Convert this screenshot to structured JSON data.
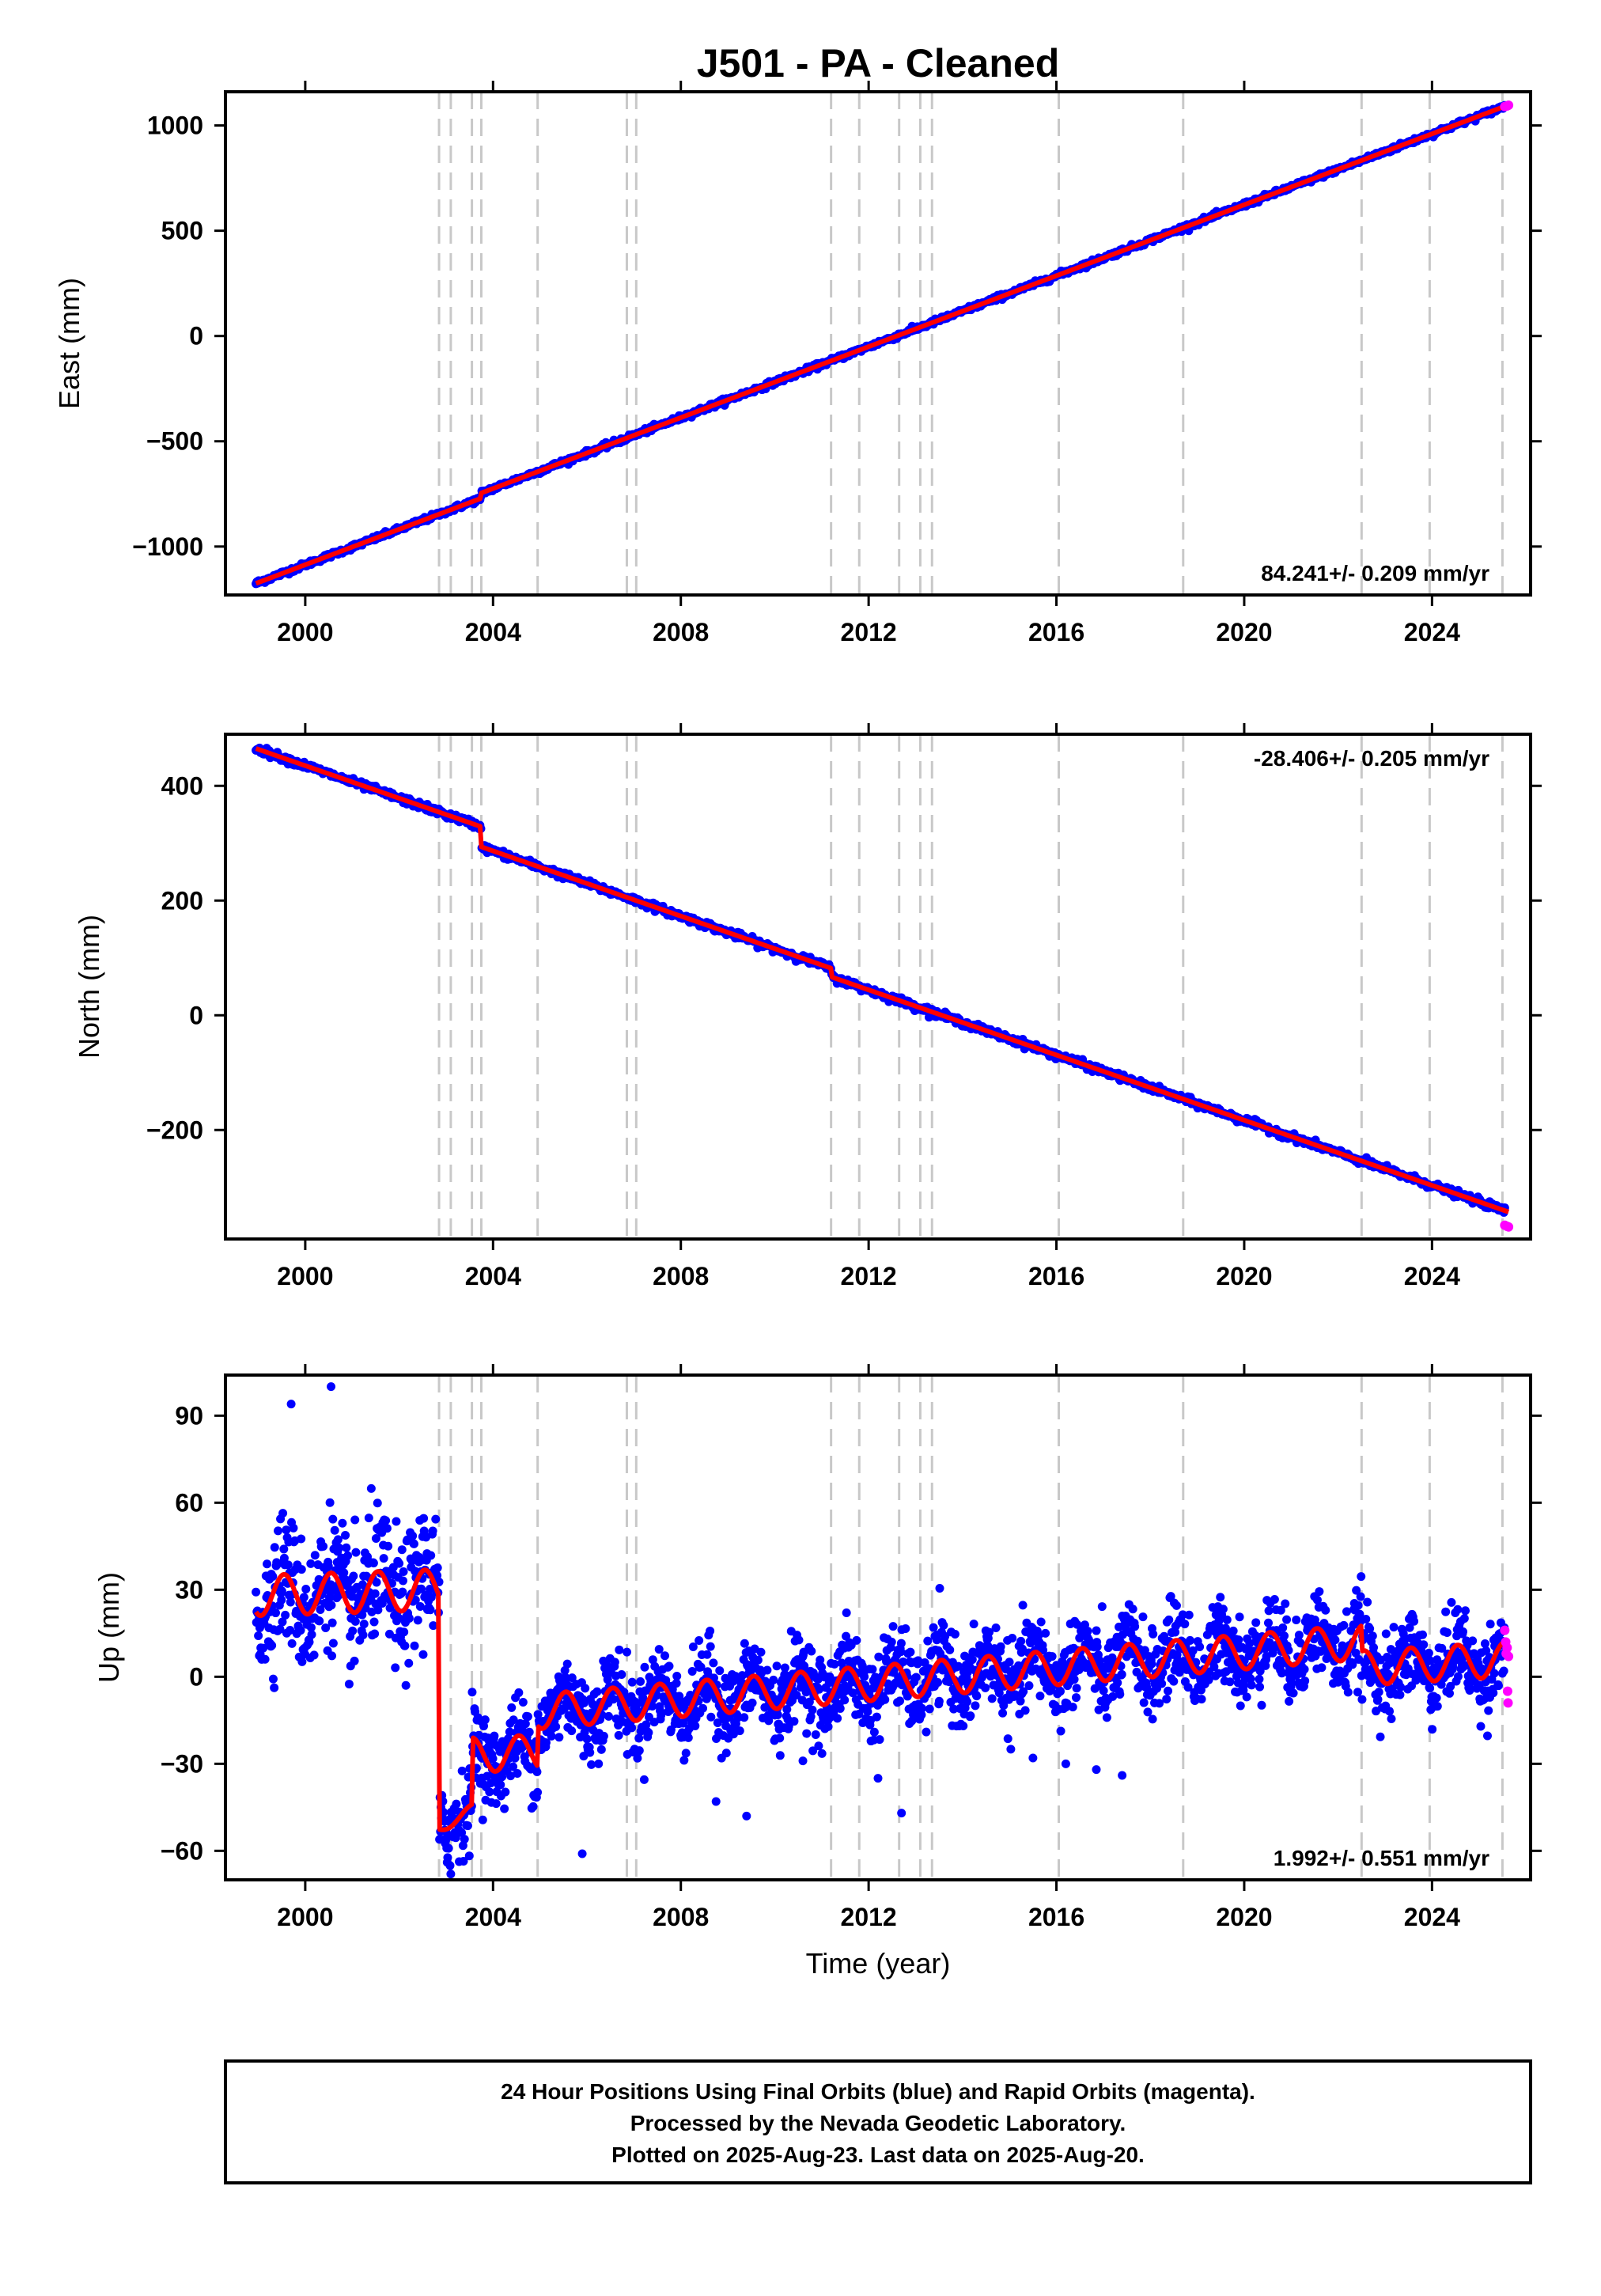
{
  "title": "J501  - PA - Cleaned",
  "footer": {
    "line1": "24 Hour Positions Using Final Orbits (blue) and Rapid Orbits (magenta).",
    "line2": "Processed by the Nevada Geodetic Laboratory.",
    "line3": "Plotted on 2025-Aug-23. Last data on 2025-Aug-20."
  },
  "colors": {
    "final_orbits": "#0000ff",
    "rapid_orbits": "#ff00ff",
    "model": "#ff0000",
    "event_lines": "#c8c8c8",
    "frame": "#000000"
  },
  "chart_data": [
    {
      "type": "scatter",
      "name": "east",
      "ylabel": "East (mm)",
      "xlabel": "",
      "xlim": [
        1998.3,
        2026.1
      ],
      "ylim": [
        -1230,
        1160
      ],
      "xticks": [
        2000,
        2004,
        2008,
        2012,
        2016,
        2020,
        2024
      ],
      "yticks": [
        -1000,
        -500,
        0,
        500,
        1000
      ],
      "yticklabels": [
        "−1000",
        "−500",
        "0",
        "500",
        "1000"
      ],
      "rate_text": "84.241+/- 0.209 mm/yr",
      "rate_position": "bottom-right",
      "event_lines": [
        2002.85,
        2003.1,
        2003.55,
        2003.75,
        2004.95,
        2006.85,
        2007.05,
        2011.2,
        2011.8,
        2012.65,
        2013.1,
        2013.35,
        2016.05,
        2018.7,
        2022.5,
        2023.95,
        2025.5
      ],
      "model": {
        "start": [
          1998.95,
          -1175
        ],
        "trend_mm_per_yr": 84.241,
        "offsets": [
          {
            "epoch": 2003.75,
            "mm": 25
          }
        ],
        "end": [
          2025.63,
          1095
        ]
      },
      "rapid_points": [
        [
          2025.55,
          1090
        ],
        [
          2025.6,
          1093
        ],
        [
          2025.63,
          1096
        ]
      ],
      "final_points_span": [
        1998.95,
        2025.55
      ],
      "noise_mm": 6
    },
    {
      "type": "scatter",
      "name": "north",
      "ylabel": "North (mm)",
      "xlabel": "",
      "xlim": [
        1998.3,
        2026.1
      ],
      "ylim": [
        -390,
        490
      ],
      "xticks": [
        2000,
        2004,
        2008,
        2012,
        2016,
        2020,
        2024
      ],
      "yticks": [
        -200,
        0,
        200,
        400
      ],
      "yticklabels": [
        "−200",
        "0",
        "200",
        "400"
      ],
      "rate_text": "-28.406+/- 0.205 mm/yr",
      "rate_position": "top-right",
      "event_lines": [
        2002.85,
        2003.1,
        2003.55,
        2003.75,
        2004.95,
        2006.85,
        2007.05,
        2011.2,
        2011.8,
        2012.65,
        2013.1,
        2013.35,
        2016.05,
        2018.7,
        2022.5,
        2023.95,
        2025.5
      ],
      "model": {
        "start": [
          1998.95,
          465
        ],
        "trend_mm_per_yr": -28.406,
        "offsets": [
          {
            "epoch": 2003.75,
            "mm": -35
          },
          {
            "epoch": 2011.2,
            "mm": -15
          }
        ],
        "end": [
          2025.63,
          -370
        ]
      },
      "rapid_points": [
        [
          2025.55,
          -366
        ],
        [
          2025.6,
          -368
        ],
        [
          2025.63,
          -369
        ]
      ],
      "final_points_span": [
        1998.95,
        2025.55
      ],
      "noise_mm": 3
    },
    {
      "type": "scatter",
      "name": "up",
      "ylabel": "Up (mm)",
      "xlabel": "Time (year)",
      "xlim": [
        1998.3,
        2026.1
      ],
      "ylim": [
        -70,
        104
      ],
      "xticks": [
        2000,
        2004,
        2008,
        2012,
        2016,
        2020,
        2024
      ],
      "yticks": [
        -60,
        -30,
        0,
        30,
        60,
        90
      ],
      "yticklabels": [
        "−60",
        "−30",
        "0",
        "30",
        "60",
        "90"
      ],
      "rate_text": "1.992+/- 0.551 mm/yr",
      "rate_position": "bottom-right",
      "event_lines": [
        2002.85,
        2003.1,
        2003.55,
        2003.75,
        2004.95,
        2006.85,
        2007.05,
        2011.2,
        2011.8,
        2012.65,
        2013.1,
        2013.35,
        2016.05,
        2018.7,
        2022.5,
        2023.95,
        2025.5
      ],
      "model": {
        "segments": [
          {
            "from": 1998.95,
            "to": 2002.85,
            "mean": [
              28,
              30
            ],
            "amplitude": 7
          },
          {
            "from": 2002.85,
            "to": 2003.55,
            "mean": [
              -52,
              -46
            ],
            "amplitude": 2
          },
          {
            "from": 2003.55,
            "to": 2004.95,
            "mean": [
              -27,
              -26
            ],
            "amplitude": 6
          },
          {
            "from": 2004.95,
            "to": 2022.5,
            "mean": [
              -12,
              12
            ],
            "amplitude": 6
          },
          {
            "from": 2022.5,
            "to": 2025.63,
            "mean": [
              3,
              6
            ],
            "amplitude": 6
          }
        ]
      },
      "rapid_points": [
        [
          2025.55,
          16
        ],
        [
          2025.57,
          12
        ],
        [
          2025.58,
          8
        ],
        [
          2025.6,
          10
        ],
        [
          2025.61,
          -5
        ],
        [
          2025.62,
          -9
        ],
        [
          2025.63,
          7
        ]
      ],
      "outliers": [
        [
          1999.7,
          94
        ],
        [
          2000.55,
          100
        ],
        [
          2008.75,
          -43
        ],
        [
          2009.4,
          -48
        ],
        [
          2012.7,
          -47
        ],
        [
          2005.9,
          -61
        ],
        [
          2015.5,
          -28
        ],
        [
          2016.2,
          -30
        ],
        [
          2016.85,
          -32
        ],
        [
          2017.4,
          -34
        ],
        [
          2010.6,
          -29
        ],
        [
          2012.2,
          -35
        ],
        [
          2003.1,
          -68
        ]
      ],
      "final_points_span": [
        1998.95,
        2025.55
      ],
      "noise_mm": 7
    }
  ]
}
